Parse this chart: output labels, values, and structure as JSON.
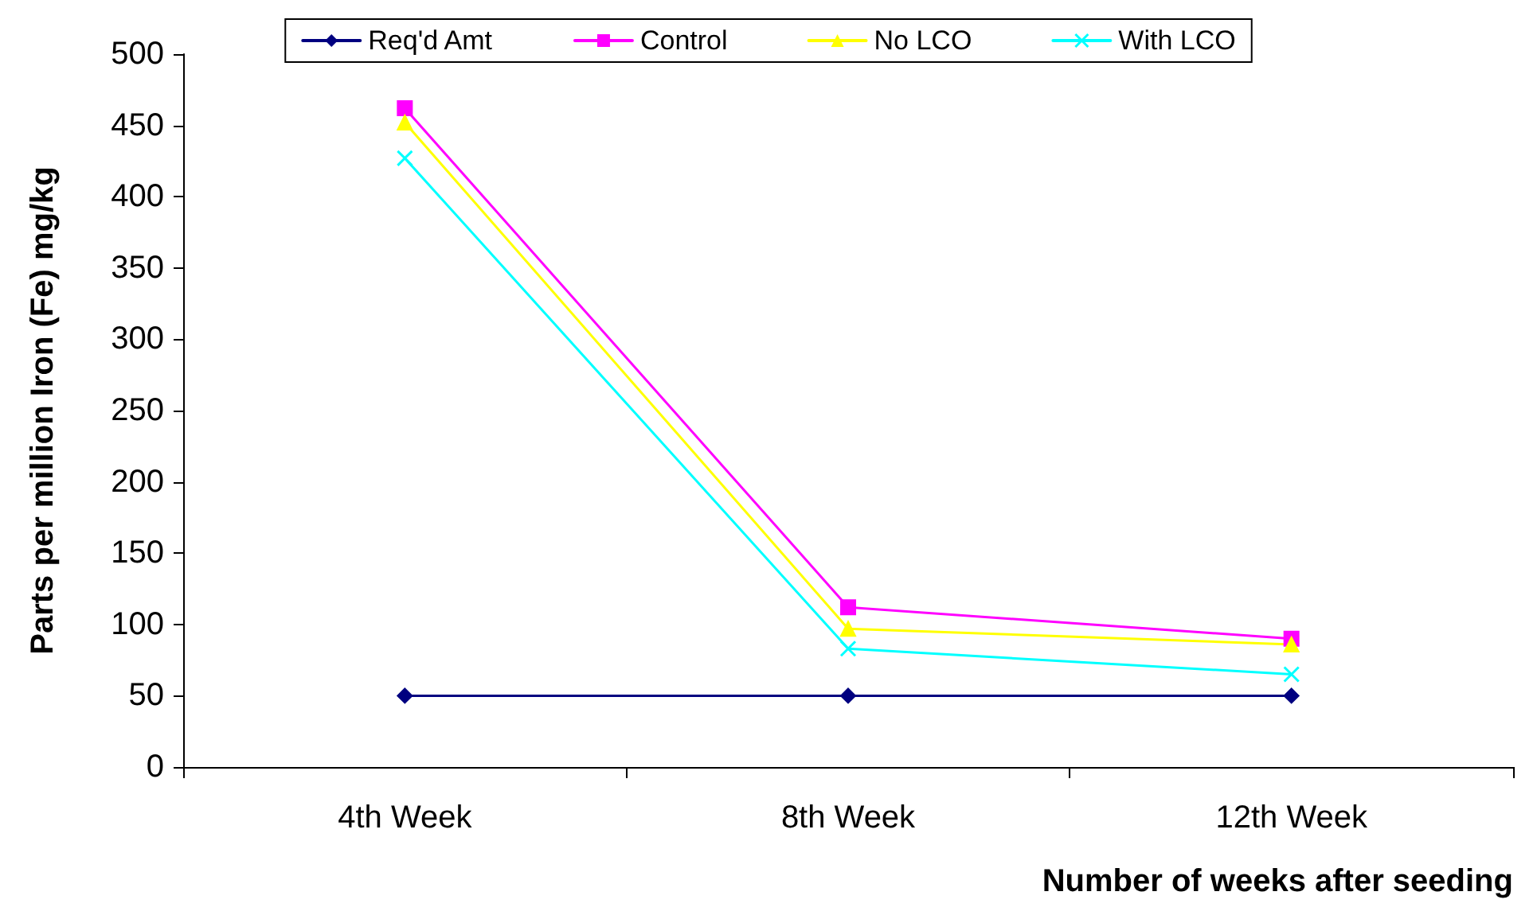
{
  "chart_data": {
    "type": "line",
    "xlabel": "Number of weeks after seeding",
    "ylabel": "Parts per million Iron (Fe) mg/kg",
    "categories": [
      "4th Week",
      "8th Week",
      "12th Week"
    ],
    "series": [
      {
        "name": "Req'd Amt",
        "color": "#000080",
        "marker": "diamond",
        "values": [
          50,
          50,
          50
        ]
      },
      {
        "name": "Control",
        "color": "#ff00ff",
        "marker": "square",
        "values": [
          462,
          112,
          90
        ]
      },
      {
        "name": "No LCO",
        "color": "#ffff00",
        "marker": "triangle",
        "values": [
          452,
          97,
          86
        ]
      },
      {
        "name": "With LCO",
        "color": "#00ffff",
        "marker": "cross",
        "values": [
          427,
          83,
          65
        ]
      }
    ],
    "ylim": [
      0,
      500
    ],
    "yticks": [
      0,
      50,
      100,
      150,
      200,
      250,
      300,
      350,
      400,
      450,
      500
    ],
    "grid": false,
    "legend": "top",
    "line_style": "solid"
  }
}
